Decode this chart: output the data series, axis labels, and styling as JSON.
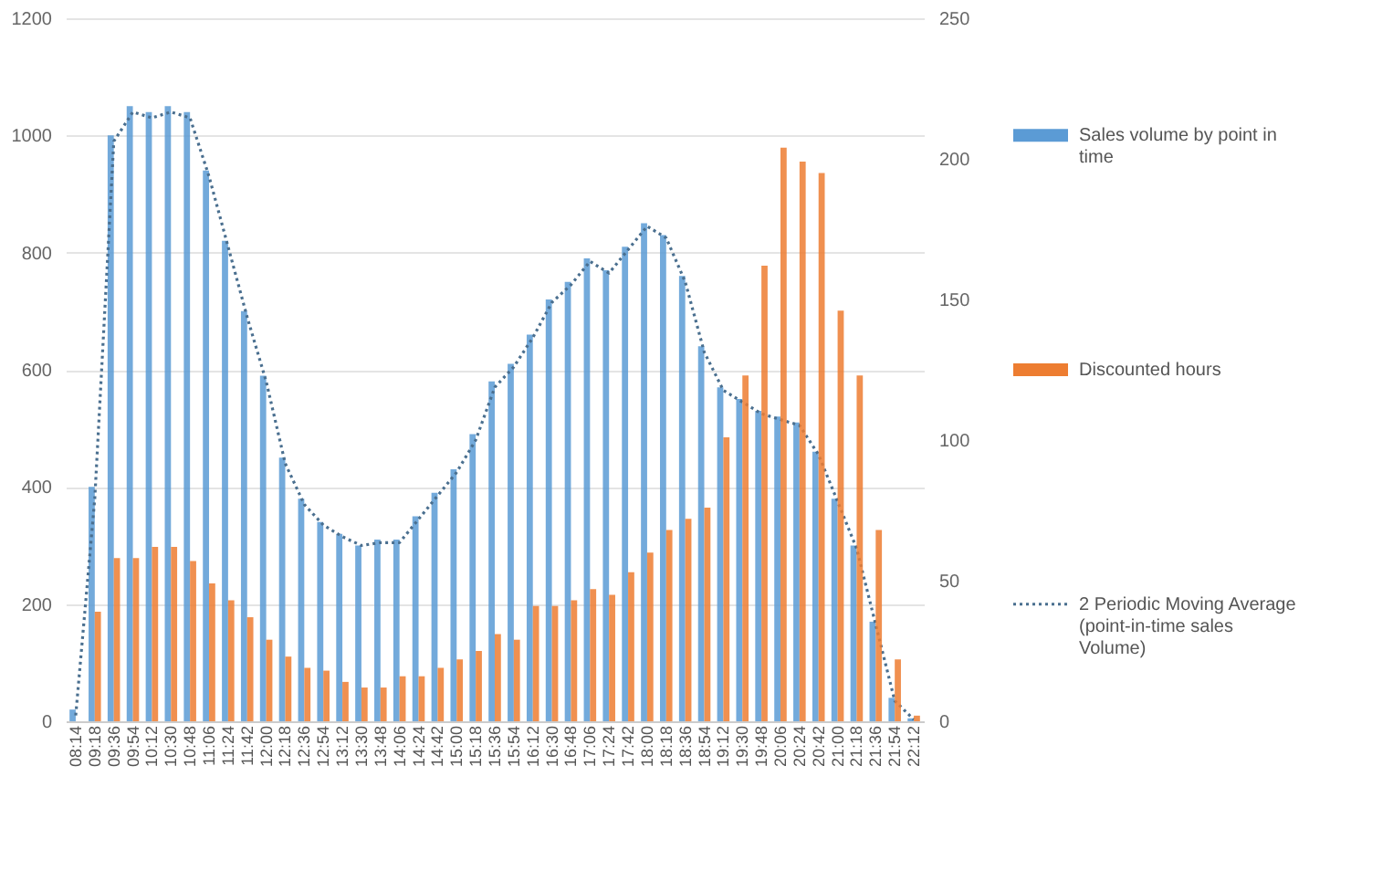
{
  "chart_data": {
    "type": "bar",
    "categories": [
      "08:14",
      "09:18",
      "09:36",
      "09:54",
      "10:12",
      "10:30",
      "10:48",
      "11:06",
      "11:24",
      "11:42",
      "12:00",
      "12:18",
      "12:36",
      "12:54",
      "13:12",
      "13:30",
      "13:48",
      "14:06",
      "14:24",
      "14:42",
      "15:00",
      "15:18",
      "15:36",
      "15:54",
      "16:12",
      "16:30",
      "16:48",
      "17:06",
      "17:24",
      "17:42",
      "18:00",
      "18:18",
      "18:36",
      "18:54",
      "19:12",
      "19:30",
      "19:48",
      "20:06",
      "20:24",
      "20:42",
      "21:00",
      "21:18",
      "21:36",
      "21:54",
      "22:12"
    ],
    "series": [
      {
        "name": "Sales volume by point in time",
        "color": "#5b9bd5",
        "values": [
          20,
          400,
          1000,
          1050,
          1040,
          1050,
          1040,
          940,
          820,
          700,
          590,
          450,
          380,
          340,
          320,
          300,
          310,
          310,
          350,
          390,
          430,
          490,
          580,
          610,
          660,
          720,
          750,
          790,
          770,
          810,
          850,
          830,
          760,
          640,
          570,
          550,
          530,
          520,
          510,
          460,
          380,
          300,
          170,
          40,
          5
        ]
      },
      {
        "name": "Discounted hours",
        "axis": "y2",
        "color": "#ed7d31",
        "values": [
          0,
          39,
          58,
          58,
          62,
          62,
          57,
          49,
          43,
          37,
          29,
          23,
          19,
          18,
          14,
          12,
          12,
          16,
          16,
          19,
          22,
          25,
          31,
          29,
          41,
          41,
          43,
          47,
          45,
          53,
          60,
          68,
          72,
          76,
          101,
          123,
          162,
          204,
          199,
          195,
          146,
          123,
          68,
          22,
          2
        ]
      },
      {
        "name": "2 Periodic Moving Average (point-in-time sales Volume)",
        "type": "line",
        "line_style": "dotted",
        "color": "#4a6f8f",
        "values": [
          10,
          380,
          990,
          1040,
          1030,
          1040,
          1030,
          930,
          810,
          690,
          580,
          440,
          370,
          335,
          315,
          300,
          305,
          305,
          345,
          385,
          425,
          480,
          570,
          605,
          655,
          715,
          745,
          785,
          765,
          805,
          845,
          825,
          750,
          630,
          565,
          545,
          525,
          515,
          505,
          455,
          375,
          295,
          165,
          35,
          3
        ]
      }
    ],
    "ylim": [
      0,
      1200
    ],
    "yticks": [
      0,
      200,
      400,
      600,
      800,
      1000,
      1200
    ],
    "y2lim": [
      0,
      250
    ],
    "y2ticks": [
      0,
      50,
      100,
      150,
      200,
      250
    ],
    "grid": "y",
    "legend": "right"
  }
}
